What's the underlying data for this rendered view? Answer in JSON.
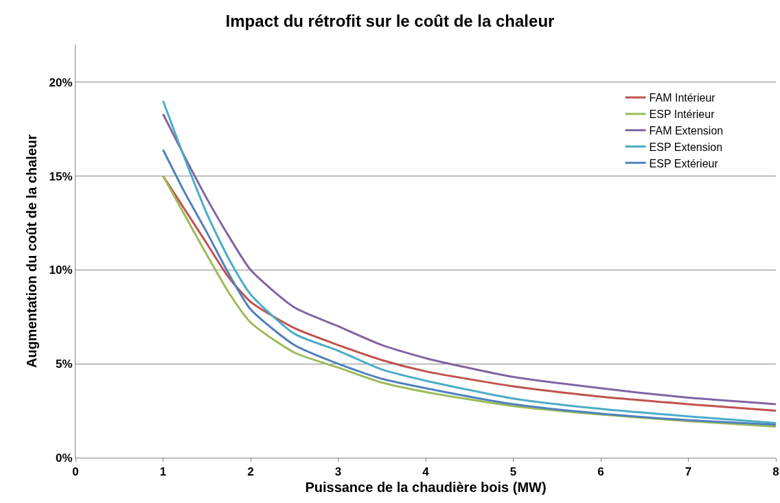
{
  "chart_data": {
    "type": "line",
    "title": "Impact du rétrofit sur le coût de la chaleur",
    "xlabel": "Puissance de la chaudière bois (MW)",
    "ylabel": "Augmentation du coût de la chaleur",
    "x": [
      1,
      1.25,
      1.5,
      1.75,
      2,
      2.5,
      3,
      3.5,
      4,
      5,
      6,
      7,
      8
    ],
    "series": [
      {
        "name": "FAM Intérieur",
        "color": "#c0504d",
        "values": [
          15.0,
          13.2,
          11.4,
          9.6,
          8.3,
          6.9,
          6.0,
          5.2,
          4.6,
          3.8,
          3.25,
          2.85,
          2.5
        ]
      },
      {
        "name": "ESP Intérieur",
        "color": "#9bbb59",
        "values": [
          15.0,
          12.9,
          10.8,
          8.8,
          7.2,
          5.6,
          4.8,
          4.0,
          3.5,
          2.75,
          2.3,
          1.95,
          1.65
        ]
      },
      {
        "name": "FAM Extension",
        "color": "#8064a2",
        "values": [
          18.3,
          16.0,
          13.8,
          11.8,
          10.0,
          8.0,
          7.0,
          6.0,
          5.3,
          4.3,
          3.7,
          3.2,
          2.85
        ]
      },
      {
        "name": "ESP Extension",
        "color": "#4bacc6",
        "values": [
          19.0,
          15.9,
          13.0,
          10.6,
          8.7,
          6.6,
          5.7,
          4.7,
          4.1,
          3.15,
          2.6,
          2.2,
          1.85
        ]
      },
      {
        "name": "ESP Extérieur",
        "color": "#4f81bd",
        "values": [
          16.4,
          14.1,
          12.0,
          9.8,
          7.9,
          6.0,
          5.0,
          4.2,
          3.7,
          2.85,
          2.35,
          2.0,
          1.75
        ]
      }
    ],
    "xlim": [
      0,
      8
    ],
    "xticks": [
      0,
      1,
      2,
      3,
      4,
      5,
      6,
      7,
      8
    ],
    "ylim": [
      0,
      22
    ],
    "yticks": [
      {
        "value": 0,
        "label": "0%"
      },
      {
        "value": 5,
        "label": "5%"
      },
      {
        "value": 10,
        "label": "10%"
      },
      {
        "value": 15,
        "label": "15%"
      },
      {
        "value": 20,
        "label": "20%"
      }
    ],
    "grid": "y",
    "legend": "top right",
    "marker": "none",
    "line_style": "solid"
  }
}
